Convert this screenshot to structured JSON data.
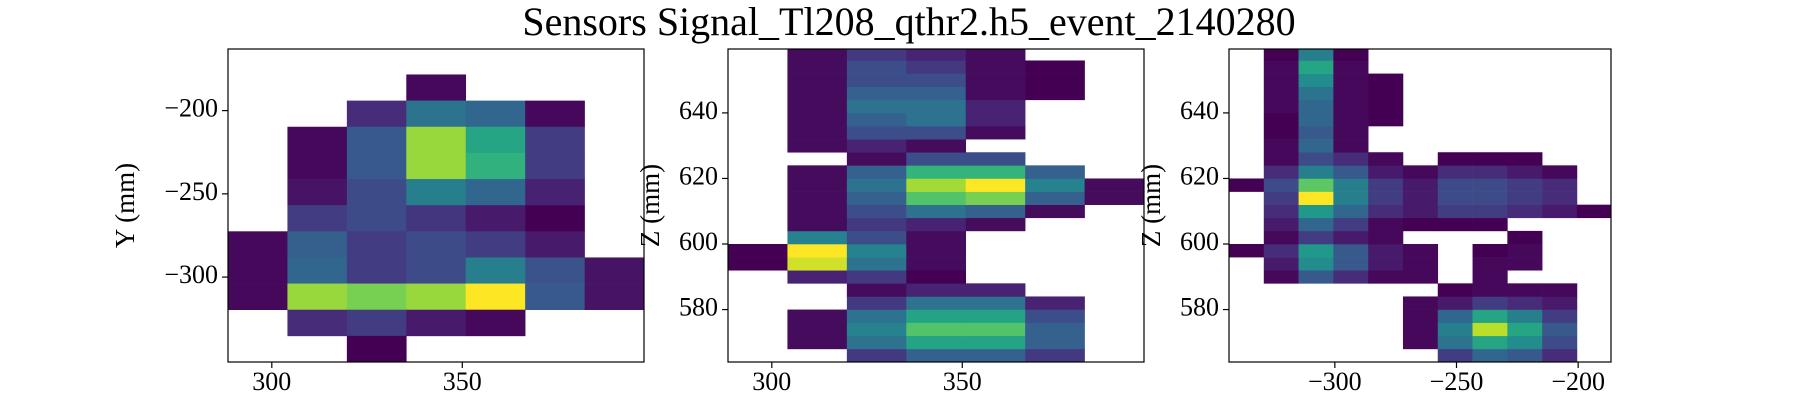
{
  "title": "Sensors Signal_Tl208_qthr2.h5_event_2140280",
  "chart_data": [
    {
      "type": "heatmap",
      "ylabel": "Y (mm)",
      "colormap": "viridis",
      "x_edges": [
        288.5,
        304.1,
        319.7,
        335.3,
        350.9,
        366.5,
        382.1,
        397.7
      ],
      "y_edges": [
        -178.3,
        -194.0,
        -209.7,
        -225.4,
        -241.1,
        -256.8,
        -272.5,
        -288.2,
        -303.9,
        -319.6,
        -335.3,
        -351.0
      ],
      "values": [
        [
          null,
          null,
          null,
          0.05,
          null,
          null,
          null
        ],
        [
          null,
          null,
          0.15,
          0.4,
          0.35,
          0.05,
          null
        ],
        [
          null,
          0.05,
          0.3,
          0.85,
          0.6,
          0.2,
          null
        ],
        [
          null,
          0.05,
          0.3,
          0.85,
          0.65,
          0.2,
          null
        ],
        [
          null,
          0.08,
          0.25,
          0.45,
          0.35,
          0.12,
          null
        ],
        [
          null,
          0.2,
          0.25,
          0.18,
          0.1,
          0.03,
          null
        ],
        [
          0.05,
          0.32,
          0.2,
          0.25,
          0.2,
          0.1,
          null
        ],
        [
          0.05,
          0.35,
          0.2,
          0.25,
          0.45,
          0.28,
          0.08
        ],
        [
          0.05,
          0.85,
          0.8,
          0.85,
          1.0,
          0.3,
          0.08
        ],
        [
          null,
          0.15,
          0.2,
          0.1,
          0.05,
          null,
          null
        ],
        [
          null,
          null,
          0.03,
          null,
          null,
          null,
          null
        ]
      ],
      "xlim": [
        288.5,
        397.7
      ],
      "ylim": [
        -351.0,
        -163.0
      ],
      "xticks": [
        300,
        350
      ],
      "yticks": [
        {
          "value": -200,
          "label": "−200"
        },
        {
          "value": -250,
          "label": "−250"
        },
        {
          "value": -300,
          "label": "−300"
        }
      ]
    },
    {
      "type": "heatmap",
      "ylabel": "Z (mm)",
      "colormap": "viridis",
      "x_edges": [
        288.5,
        304.1,
        319.7,
        335.3,
        350.9,
        366.5,
        382.1,
        397.7
      ],
      "y_edges": [
        564,
        568,
        572,
        576,
        580,
        584,
        588,
        592,
        596,
        600,
        604,
        608,
        612,
        616,
        620,
        624,
        628,
        632,
        636,
        640,
        644,
        648,
        652,
        656,
        660
      ],
      "values": [
        [
          null,
          null,
          0.15,
          0.25,
          0.25,
          0.15,
          null
        ],
        [
          null,
          0.05,
          0.3,
          0.45,
          0.45,
          0.25,
          null
        ],
        [
          null,
          0.05,
          0.35,
          0.55,
          0.55,
          0.25,
          null
        ],
        [
          null,
          0.05,
          0.3,
          0.45,
          0.45,
          0.2,
          null
        ],
        [
          null,
          null,
          0.15,
          0.3,
          0.3,
          0.1,
          null
        ],
        [
          null,
          null,
          0.05,
          0.1,
          0.1,
          null,
          null
        ],
        [
          null,
          0.1,
          0.15,
          0.03,
          null,
          null,
          null
        ],
        [
          0.03,
          0.7,
          0.3,
          0.05,
          null,
          null,
          null
        ],
        [
          0.03,
          0.75,
          0.35,
          0.05,
          null,
          null,
          null
        ],
        [
          null,
          0.35,
          0.2,
          0.05,
          null,
          null,
          null
        ],
        [
          null,
          0.05,
          0.15,
          0.1,
          0.05,
          null,
          null
        ],
        [
          null,
          0.05,
          0.2,
          0.3,
          0.25,
          0.05,
          null
        ],
        [
          null,
          0.05,
          0.25,
          0.55,
          0.6,
          0.25,
          0.05
        ],
        [
          null,
          0.05,
          0.3,
          0.65,
          0.75,
          0.35,
          0.05
        ],
        [
          null,
          0.05,
          0.25,
          0.5,
          0.5,
          0.25,
          null
        ],
        [
          null,
          null,
          0.05,
          0.2,
          0.2,
          null,
          null
        ],
        [
          null,
          0.05,
          0.1,
          0.05,
          null,
          null,
          null
        ],
        [
          null,
          0.05,
          0.2,
          0.2,
          0.05,
          null,
          null
        ],
        [
          null,
          0.05,
          0.25,
          0.3,
          0.1,
          null,
          null
        ],
        [
          null,
          0.05,
          0.3,
          0.3,
          0.1,
          null,
          null
        ],
        [
          null,
          0.05,
          0.25,
          0.25,
          0.05,
          0.03,
          null
        ],
        [
          null,
          0.05,
          0.2,
          0.2,
          0.05,
          0.03,
          null
        ],
        [
          null,
          0.05,
          0.2,
          0.15,
          0.05,
          0.03,
          null
        ],
        [
          null,
          0.05,
          0.15,
          0.1,
          0.05,
          null,
          null
        ]
      ],
      "xlim": [
        288.5,
        397.7
      ],
      "ylim": [
        564,
        659.5
      ],
      "xticks": [
        300,
        350
      ],
      "yticks": [
        580,
        600,
        620,
        640
      ]
    },
    {
      "type": "heatmap",
      "ylabel": "Z (mm)",
      "colormap": "viridis",
      "x_edges": [
        -343.5,
        -329.2,
        -314.9,
        -300.6,
        -286.3,
        -272.0,
        -257.7,
        -243.4,
        -229.1,
        -214.8,
        -200.5,
        -186.5
      ],
      "y_edges": [
        564,
        568,
        572,
        576,
        580,
        584,
        588,
        592,
        596,
        600,
        604,
        608,
        612,
        616,
        620,
        624,
        628,
        632,
        636,
        640,
        644,
        648,
        652,
        656,
        660
      ],
      "values": [
        [
          null,
          null,
          null,
          null,
          null,
          null,
          0.2,
          0.35,
          0.3,
          0.15,
          null
        ],
        [
          null,
          null,
          null,
          null,
          null,
          0.05,
          0.4,
          0.6,
          0.5,
          0.25,
          null
        ],
        [
          null,
          null,
          null,
          null,
          null,
          0.05,
          0.45,
          0.9,
          0.6,
          0.3,
          null
        ],
        [
          null,
          null,
          null,
          null,
          null,
          0.05,
          0.35,
          0.6,
          0.45,
          0.2,
          null
        ],
        [
          null,
          null,
          null,
          null,
          null,
          0.05,
          0.1,
          0.2,
          0.15,
          0.1,
          null
        ],
        [
          null,
          null,
          null,
          null,
          null,
          null,
          0.03,
          0.05,
          0.05,
          0.05,
          null
        ],
        [
          null,
          0.05,
          0.3,
          0.15,
          0.05,
          0.05,
          null,
          0.05,
          null,
          null,
          null
        ],
        [
          null,
          0.1,
          0.5,
          0.3,
          0.1,
          0.05,
          null,
          0.05,
          0.05,
          null,
          null
        ],
        [
          0.03,
          0.15,
          0.55,
          0.3,
          0.1,
          0.05,
          null,
          0.03,
          0.05,
          null,
          null
        ],
        [
          null,
          0.05,
          0.2,
          0.1,
          0.05,
          null,
          null,
          null,
          0.03,
          null,
          null
        ],
        [
          null,
          0.1,
          0.35,
          0.2,
          0.05,
          0.03,
          0.03,
          0.03,
          null,
          null,
          null
        ],
        [
          null,
          0.15,
          0.55,
          0.35,
          0.15,
          0.1,
          0.2,
          0.2,
          0.15,
          0.1,
          0.03
        ],
        [
          null,
          0.2,
          1.0,
          0.45,
          0.2,
          0.1,
          0.25,
          0.25,
          0.2,
          0.15,
          null
        ],
        [
          0.03,
          0.25,
          0.75,
          0.45,
          0.2,
          0.1,
          0.25,
          0.25,
          0.2,
          0.15,
          null
        ],
        [
          null,
          0.15,
          0.45,
          0.3,
          0.1,
          0.05,
          0.15,
          0.15,
          0.1,
          0.05,
          null
        ],
        [
          null,
          0.05,
          0.25,
          0.15,
          0.05,
          null,
          0.03,
          0.03,
          0.03,
          null,
          null
        ],
        [
          null,
          0.05,
          0.35,
          0.05,
          null,
          null,
          null,
          null,
          null,
          null,
          null
        ],
        [
          null,
          0.03,
          0.3,
          0.05,
          null,
          null,
          null,
          null,
          null,
          null,
          null
        ],
        [
          null,
          0.03,
          0.35,
          0.05,
          0.03,
          null,
          null,
          null,
          null,
          null,
          null
        ],
        [
          null,
          0.05,
          0.35,
          0.05,
          0.03,
          null,
          null,
          null,
          null,
          null,
          null
        ],
        [
          null,
          0.05,
          0.4,
          0.05,
          0.03,
          null,
          null,
          null,
          null,
          null,
          null
        ],
        [
          null,
          0.05,
          0.5,
          0.05,
          0.03,
          null,
          null,
          null,
          null,
          null,
          null
        ],
        [
          null,
          0.05,
          0.6,
          0.05,
          null,
          null,
          null,
          null,
          null,
          null,
          null
        ],
        [
          null,
          0.03,
          0.45,
          0.03,
          null,
          null,
          null,
          null,
          null,
          null,
          null
        ]
      ],
      "xlim": [
        -343.5,
        -186.5
      ],
      "ylim": [
        564,
        659.5
      ],
      "xticks": [
        {
          "value": -300,
          "label": "−300"
        },
        {
          "value": -250,
          "label": "−250"
        },
        {
          "value": -200,
          "label": "−200"
        }
      ],
      "yticks": [
        580,
        600,
        620,
        640
      ]
    }
  ]
}
